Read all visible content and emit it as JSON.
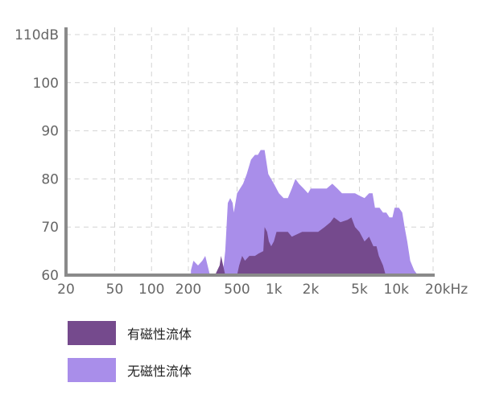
{
  "chart_data": {
    "type": "area",
    "x_scale": "log",
    "x_ticks": [
      {
        "value": 20,
        "label": "20"
      },
      {
        "value": 50,
        "label": "50"
      },
      {
        "value": 100,
        "label": "100"
      },
      {
        "value": 200,
        "label": "200"
      },
      {
        "value": 500,
        "label": "500"
      },
      {
        "value": 1000,
        "label": "1k"
      },
      {
        "value": 2000,
        "label": "2k"
      },
      {
        "value": 5000,
        "label": "5k"
      },
      {
        "value": 10000,
        "label": "10k"
      },
      {
        "value": 20000,
        "label": "20kHz"
      }
    ],
    "y_ticks": [
      {
        "value": 60,
        "label": "60"
      },
      {
        "value": 70,
        "label": "70"
      },
      {
        "value": 80,
        "label": "80"
      },
      {
        "value": 90,
        "label": "90"
      },
      {
        "value": 100,
        "label": "100"
      },
      {
        "value": 110,
        "label": "110dB"
      }
    ],
    "xlim": [
      20,
      20000
    ],
    "ylim": [
      60,
      110
    ],
    "grid": true,
    "legend_position": "bottom-left",
    "series": [
      {
        "name": "无磁性流体",
        "color": "#a98eea",
        "points": [
          [
            210,
            61
          ],
          [
            220,
            63
          ],
          [
            240,
            62
          ],
          [
            260,
            63
          ],
          [
            275,
            64
          ],
          [
            300,
            60
          ],
          [
            320,
            60
          ],
          [
            350,
            60
          ],
          [
            370,
            60
          ],
          [
            385,
            61
          ],
          [
            400,
            65
          ],
          [
            420,
            75
          ],
          [
            440,
            76
          ],
          [
            460,
            75
          ],
          [
            470,
            73
          ],
          [
            500,
            77
          ],
          [
            560,
            79
          ],
          [
            600,
            81
          ],
          [
            650,
            84
          ],
          [
            700,
            85
          ],
          [
            740,
            85
          ],
          [
            780,
            86
          ],
          [
            840,
            86
          ],
          [
            900,
            81
          ],
          [
            1000,
            79
          ],
          [
            1100,
            77
          ],
          [
            1200,
            76
          ],
          [
            1300,
            76
          ],
          [
            1400,
            78
          ],
          [
            1500,
            80
          ],
          [
            1600,
            79
          ],
          [
            1750,
            78
          ],
          [
            1900,
            77
          ],
          [
            2000,
            78
          ],
          [
            2300,
            78
          ],
          [
            2700,
            78
          ],
          [
            3000,
            79
          ],
          [
            3300,
            78
          ],
          [
            3600,
            77
          ],
          [
            4000,
            77
          ],
          [
            4600,
            77
          ],
          [
            5000,
            76.5
          ],
          [
            5500,
            76
          ],
          [
            6000,
            77
          ],
          [
            6400,
            77
          ],
          [
            6700,
            74
          ],
          [
            7300,
            74
          ],
          [
            7800,
            73
          ],
          [
            8300,
            73
          ],
          [
            8800,
            72
          ],
          [
            9300,
            72
          ],
          [
            9700,
            74
          ],
          [
            10500,
            74
          ],
          [
            11200,
            73
          ],
          [
            11700,
            70
          ],
          [
            12300,
            67
          ],
          [
            13000,
            63
          ],
          [
            14000,
            61
          ],
          [
            15000,
            60
          ]
        ]
      },
      {
        "name": "有磁性流体",
        "color": "#754a8d",
        "points": [
          [
            330,
            60
          ],
          [
            360,
            62
          ],
          [
            370,
            64
          ],
          [
            385,
            62
          ],
          [
            400,
            60
          ],
          [
            420,
            60
          ],
          [
            460,
            60
          ],
          [
            480,
            60
          ],
          [
            500,
            60
          ],
          [
            520,
            62
          ],
          [
            550,
            64
          ],
          [
            580,
            63
          ],
          [
            630,
            64
          ],
          [
            700,
            64
          ],
          [
            750,
            64.5
          ],
          [
            820,
            65
          ],
          [
            840,
            70
          ],
          [
            880,
            69
          ],
          [
            910,
            67
          ],
          [
            950,
            66
          ],
          [
            1000,
            67
          ],
          [
            1050,
            69
          ],
          [
            1200,
            69
          ],
          [
            1300,
            69
          ],
          [
            1400,
            68
          ],
          [
            1700,
            69
          ],
          [
            2000,
            69
          ],
          [
            2300,
            69
          ],
          [
            2600,
            70
          ],
          [
            2900,
            71
          ],
          [
            3100,
            72
          ],
          [
            3500,
            71
          ],
          [
            4000,
            71.5
          ],
          [
            4300,
            72
          ],
          [
            4600,
            70
          ],
          [
            5000,
            69
          ],
          [
            5500,
            67
          ],
          [
            6000,
            68
          ],
          [
            6500,
            66
          ],
          [
            6900,
            66
          ],
          [
            7200,
            64
          ],
          [
            7800,
            62
          ],
          [
            8200,
            60
          ],
          [
            8600,
            59.5
          ]
        ]
      }
    ]
  }
}
